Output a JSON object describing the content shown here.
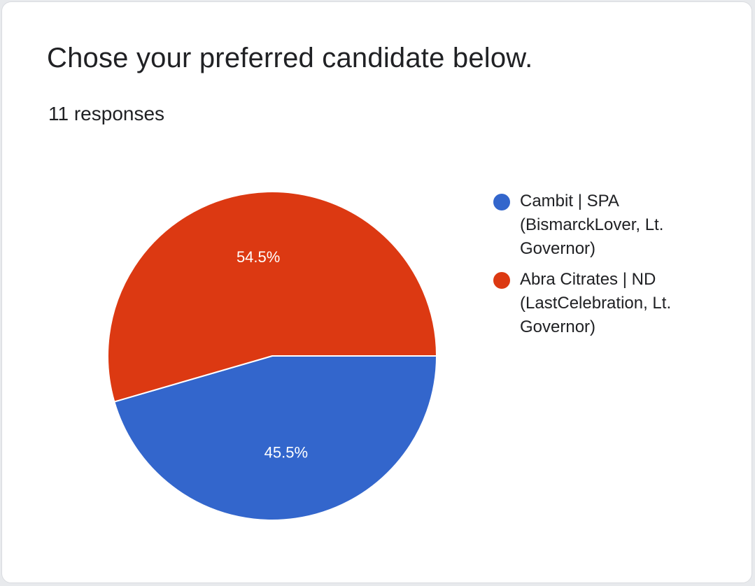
{
  "card": {
    "title": "Chose your preferred candidate below.",
    "responses": "11 responses"
  },
  "chart_data": {
    "type": "pie",
    "legend_position": "right",
    "slices": [
      {
        "label": "Cambit | SPA (BismarckLover, Lt. Governor)",
        "value": 45.5,
        "display": "45.5%",
        "color": "#3366cc"
      },
      {
        "label": "Abra Citrates | ND (LastCelebration, Lt. Governor)",
        "value": 54.5,
        "display": "54.5%",
        "color": "#dc3912"
      }
    ]
  }
}
